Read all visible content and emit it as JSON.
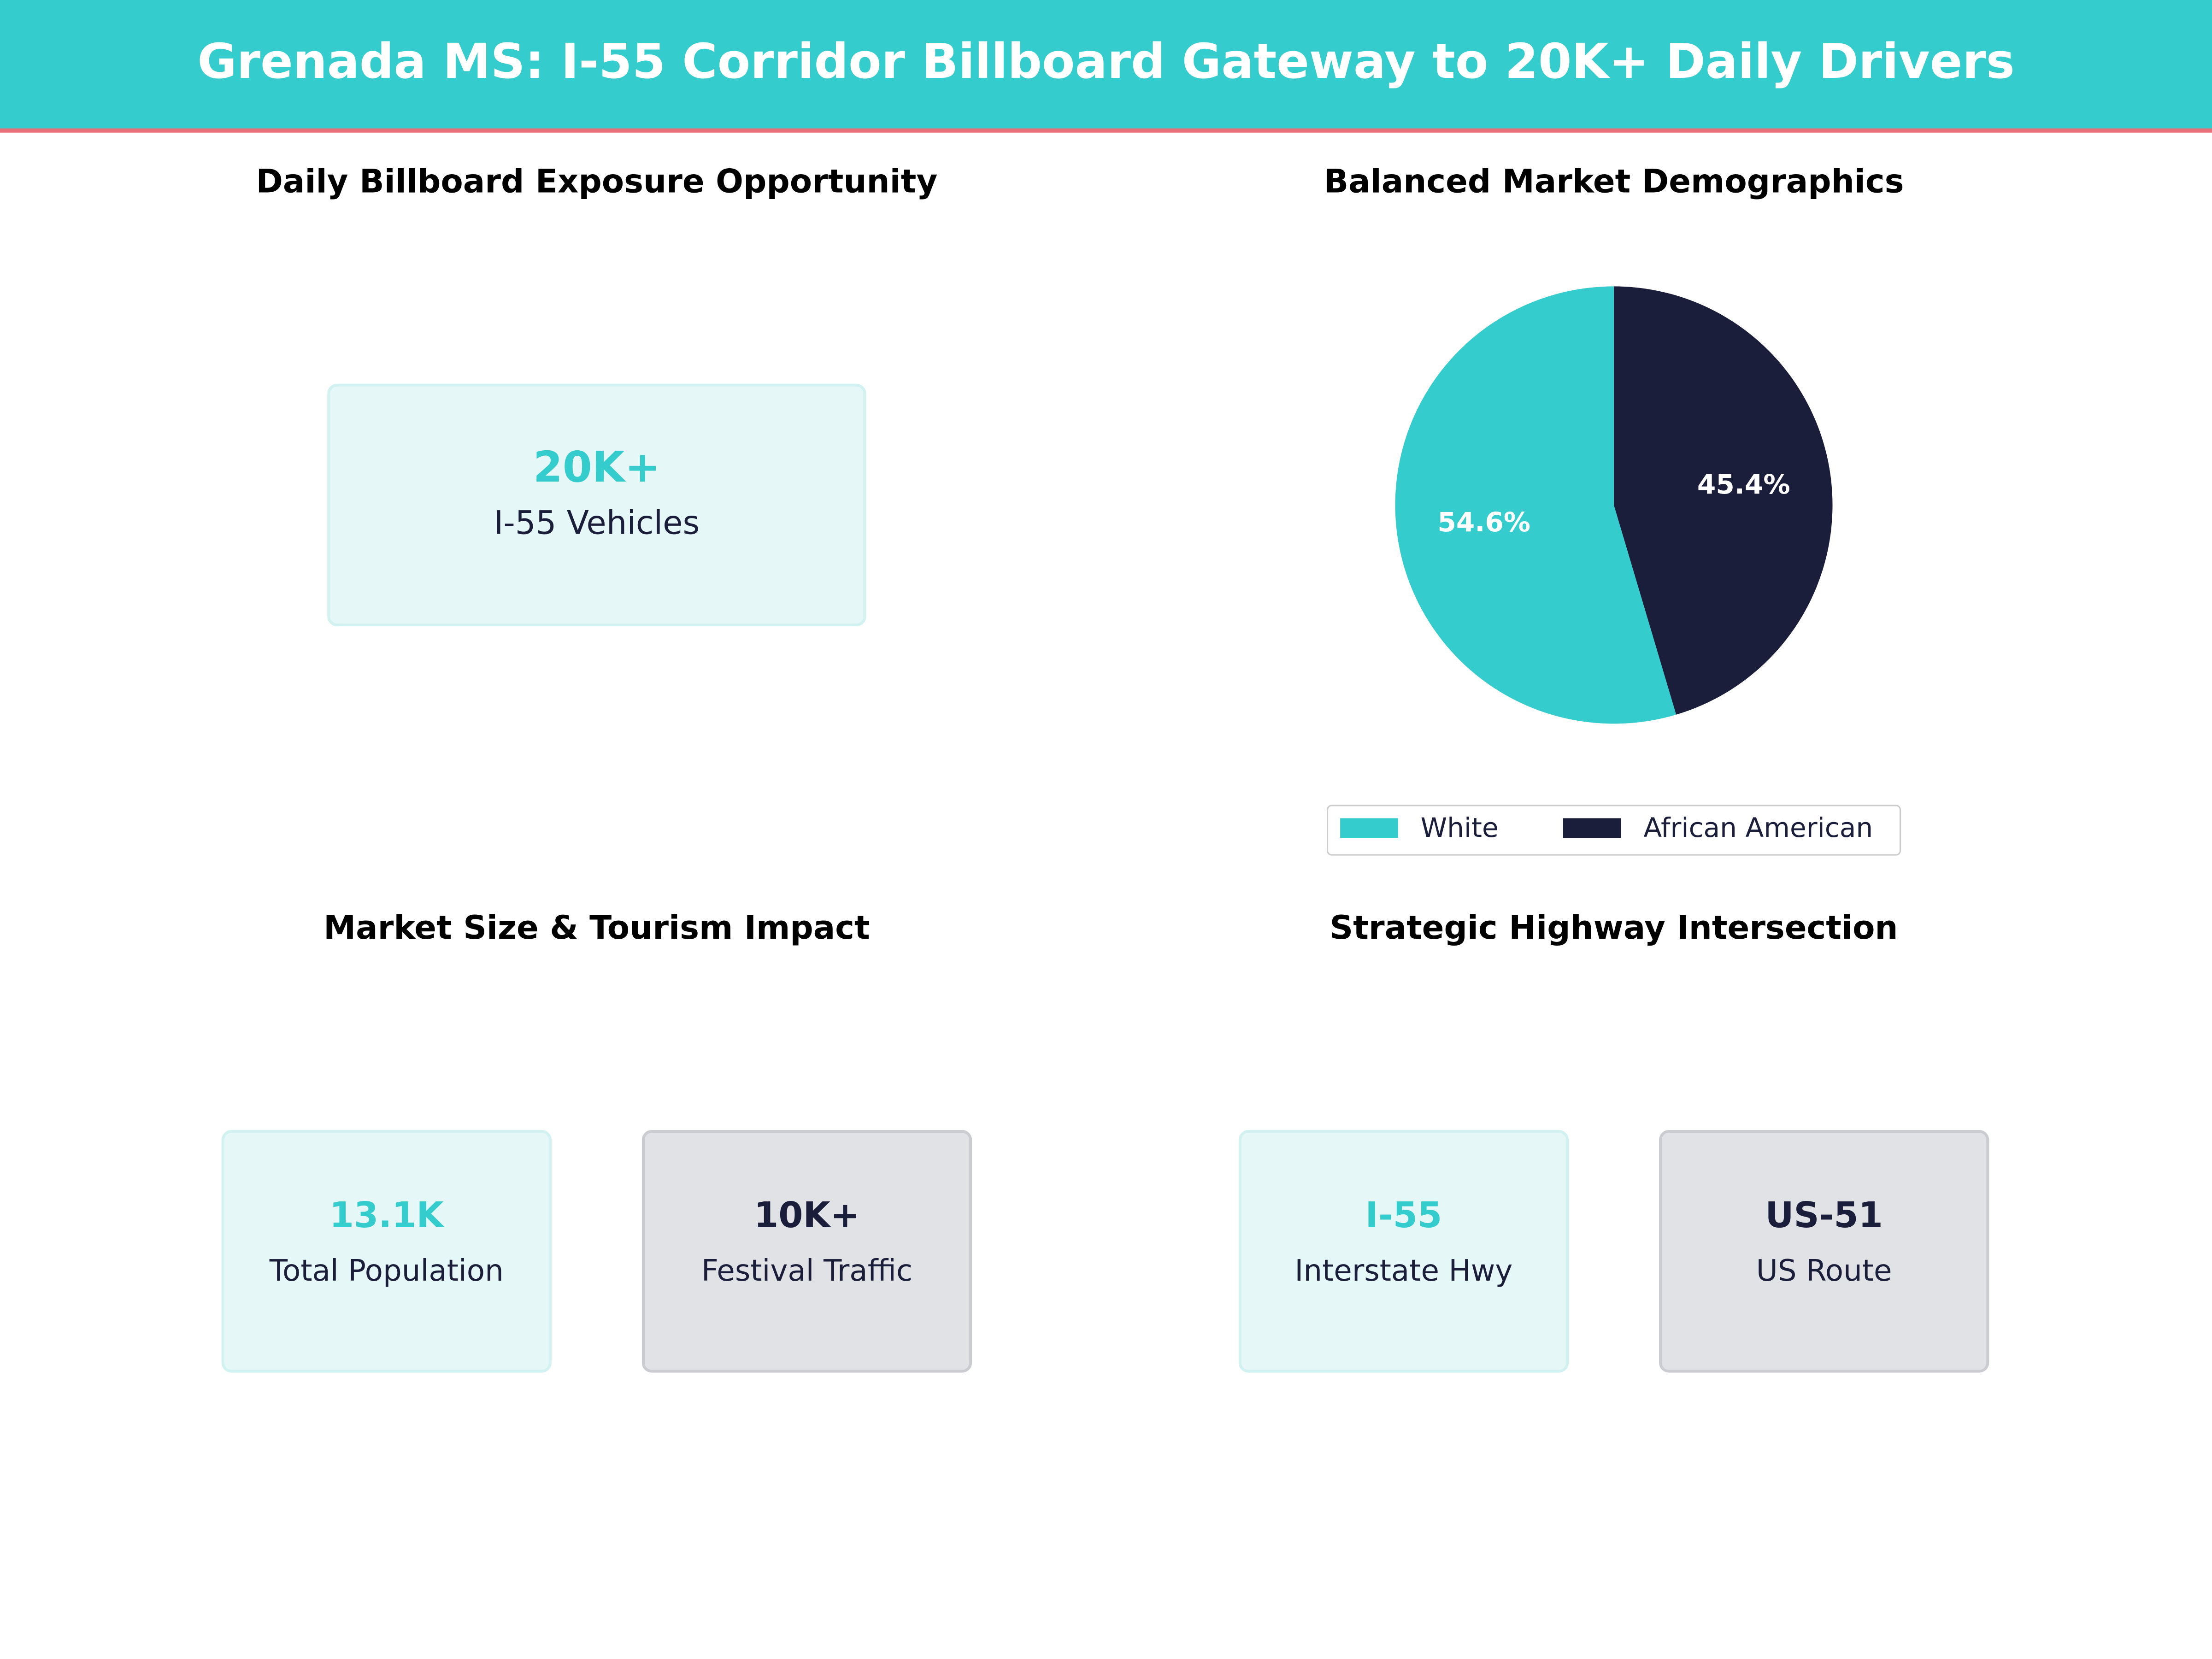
{
  "header": {
    "title": "Grenada MS: I-55 Corridor Billboard Gateway to 20K+ Daily Drivers"
  },
  "chart_data": {
    "type": "pie",
    "title": "Balanced Market Demographics",
    "categories": [
      "White",
      "African American"
    ],
    "values": [
      54.6,
      45.4
    ],
    "value_labels": [
      "54.6%",
      "45.4%"
    ],
    "colors": [
      "#34cccc",
      "#1b1e3a"
    ],
    "start_angle": 90,
    "legend": "lower center"
  },
  "panels": [
    {
      "title": "Daily Billboard Exposure Opportunity",
      "cards": [
        {
          "value": "20K+",
          "label": "I-55 Vehicles",
          "color": "#34cccc"
        }
      ]
    },
    {
      "title": "Market Size & Tourism Impact",
      "cards": [
        {
          "value": "13.1K",
          "label": "Total Population",
          "color": "#34cccc"
        },
        {
          "value": "10K+",
          "label": "Festival Traffic",
          "color": "#1b1e3a"
        }
      ]
    },
    {
      "title": "Strategic Highway Intersection",
      "cards": [
        {
          "value": "I-55",
          "label": "Interstate Hwy",
          "color": "#34cccc"
        },
        {
          "value": "US-51",
          "label": "US Route",
          "color": "#1b1e3a"
        }
      ]
    }
  ]
}
